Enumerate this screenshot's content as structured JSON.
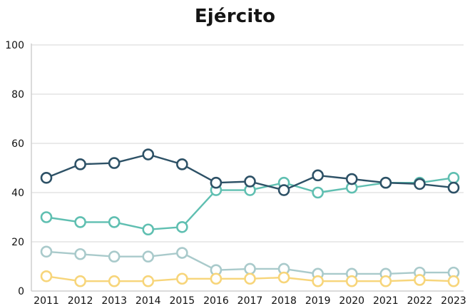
{
  "chart_data": {
    "type": "line",
    "title": "Ejército",
    "xlabel": "",
    "ylabel": "",
    "ylim": [
      0,
      100
    ],
    "yticks": [
      "0",
      "20",
      "40",
      "60",
      "80",
      "100"
    ],
    "grid": true,
    "legend": "none",
    "categories": [
      "2011",
      "2012",
      "2013",
      "2014",
      "2015",
      "2016",
      "2017",
      "2018",
      "2019",
      "2020",
      "2021",
      "2022",
      "2023"
    ],
    "series": [
      {
        "color": "#a9cacb",
        "values": [
          16,
          15,
          14,
          14,
          15.5,
          8.5,
          9,
          9,
          7,
          7,
          7,
          7.5,
          7.5
        ]
      },
      {
        "color": "#f7d57a",
        "values": [
          6,
          4,
          4,
          4,
          5,
          5,
          5,
          5.5,
          4,
          4,
          4,
          4.5,
          4
        ]
      },
      {
        "color": "#5fbfb1",
        "values": [
          30,
          28,
          28,
          25,
          26,
          41,
          41,
          44,
          40,
          42,
          44,
          44,
          46
        ]
      },
      {
        "color": "#2d5166",
        "values": [
          46,
          51.5,
          52,
          55.5,
          51.5,
          44,
          44.5,
          41,
          47,
          45.5,
          44,
          43.5,
          42
        ]
      }
    ]
  }
}
